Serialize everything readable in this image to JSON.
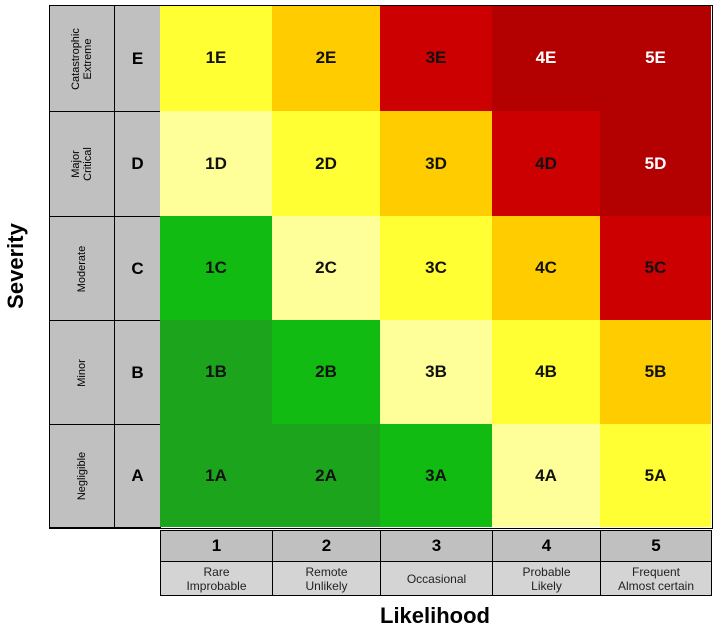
{
  "axes": {
    "y_title": "Severity",
    "x_title": "Likelihood"
  },
  "severity": [
    {
      "letter": "E",
      "name": "Catastrophic\nExtreme"
    },
    {
      "letter": "D",
      "name": "Major\nCritical"
    },
    {
      "letter": "C",
      "name": "Moderate"
    },
    {
      "letter": "B",
      "name": "Minor"
    },
    {
      "letter": "A",
      "name": "Negligible"
    }
  ],
  "likelihood": [
    {
      "number": "1",
      "name": "Rare\nImprobable"
    },
    {
      "number": "2",
      "name": "Remote\nUnlikely"
    },
    {
      "number": "3",
      "name": "Occasional"
    },
    {
      "number": "4",
      "name": "Probable\nLikely"
    },
    {
      "number": "5",
      "name": "Frequent\nAlmost certain"
    }
  ],
  "colors": {
    "dark_red": "#b30000",
    "red": "#cc0000",
    "orange": "#ffcc00",
    "yellow": "#ffff33",
    "pale_yellow": "#ffff99",
    "light_green": "#11bb11",
    "green": "#1ca51c"
  },
  "grid": [
    [
      {
        "label": "1E",
        "color": "yellow"
      },
      {
        "label": "2E",
        "color": "orange"
      },
      {
        "label": "3E",
        "color": "red"
      },
      {
        "label": "4E",
        "color": "dark_red",
        "light": true
      },
      {
        "label": "5E",
        "color": "dark_red",
        "light": true
      }
    ],
    [
      {
        "label": "1D",
        "color": "pale_yellow"
      },
      {
        "label": "2D",
        "color": "yellow"
      },
      {
        "label": "3D",
        "color": "orange"
      },
      {
        "label": "4D",
        "color": "red"
      },
      {
        "label": "5D",
        "color": "dark_red",
        "light": true
      }
    ],
    [
      {
        "label": "1C",
        "color": "light_green"
      },
      {
        "label": "2C",
        "color": "pale_yellow"
      },
      {
        "label": "3C",
        "color": "yellow"
      },
      {
        "label": "4C",
        "color": "orange"
      },
      {
        "label": "5C",
        "color": "red"
      }
    ],
    [
      {
        "label": "1B",
        "color": "green"
      },
      {
        "label": "2B",
        "color": "light_green"
      },
      {
        "label": "3B",
        "color": "pale_yellow"
      },
      {
        "label": "4B",
        "color": "yellow"
      },
      {
        "label": "5B",
        "color": "orange"
      }
    ],
    [
      {
        "label": "1A",
        "color": "green"
      },
      {
        "label": "2A",
        "color": "green"
      },
      {
        "label": "3A",
        "color": "light_green"
      },
      {
        "label": "4A",
        "color": "pale_yellow"
      },
      {
        "label": "5A",
        "color": "yellow"
      }
    ]
  ]
}
